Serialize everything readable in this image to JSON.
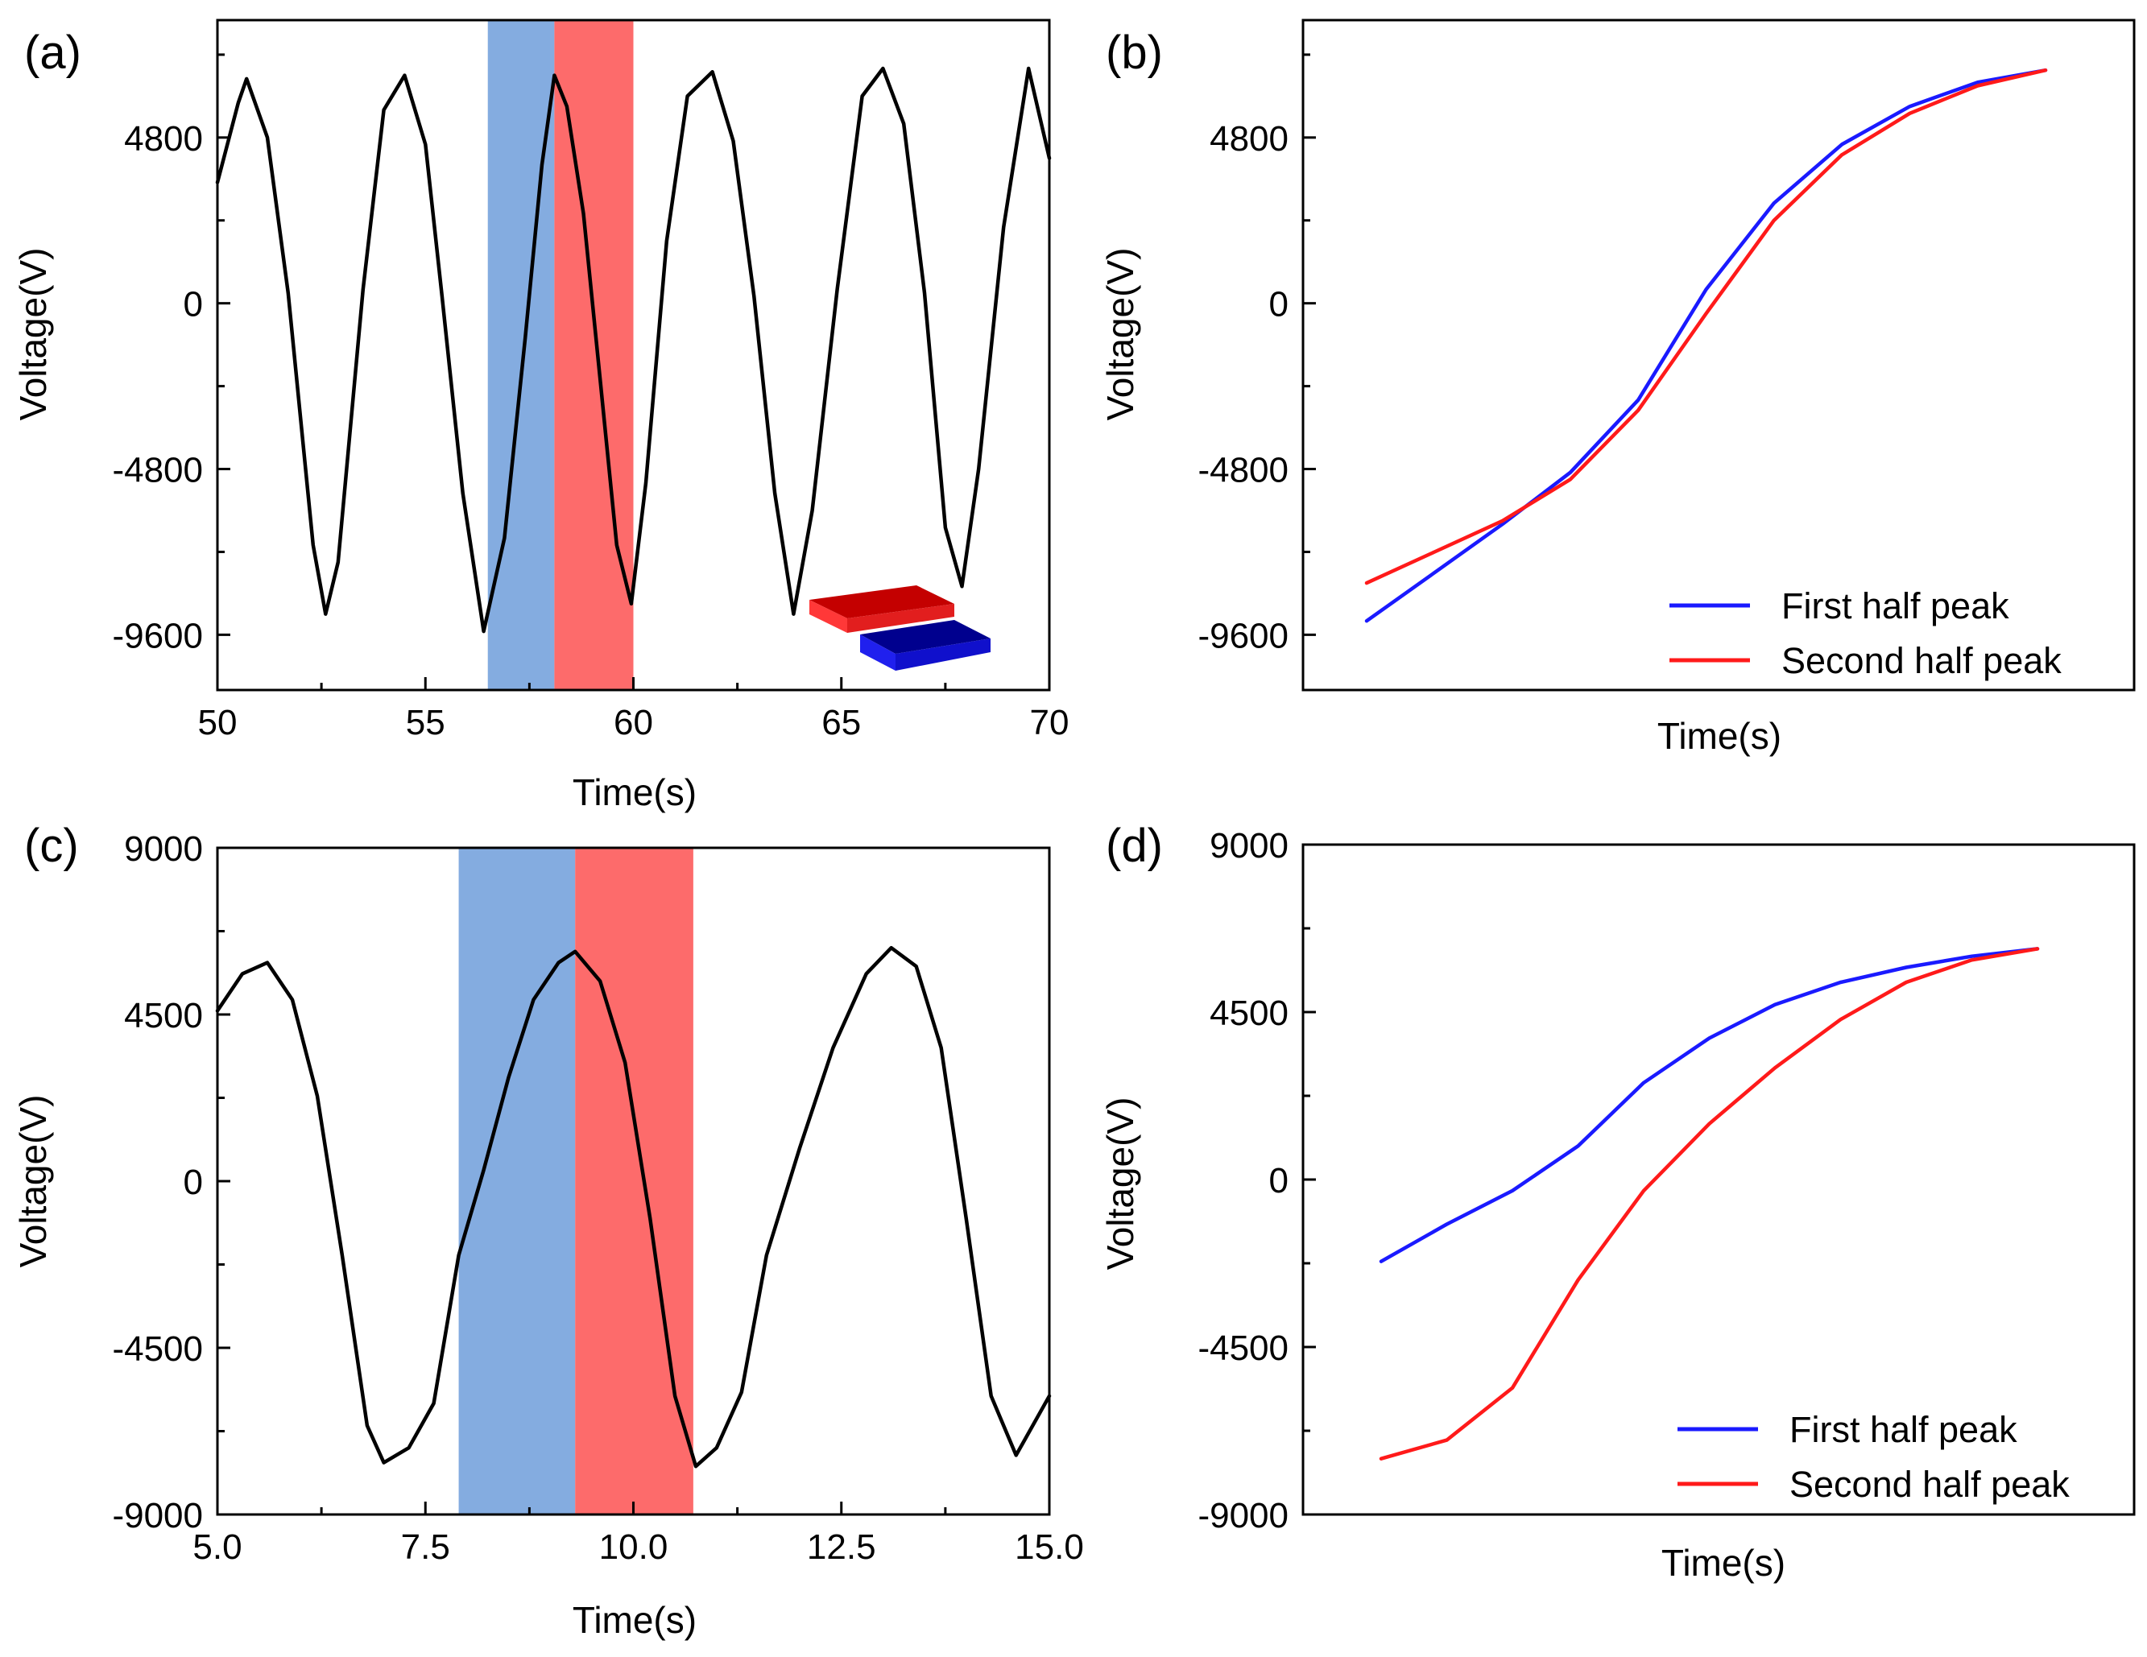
{
  "chart_data": [
    {
      "panel": "(a)",
      "type": "line",
      "xlabel": "Time(s)",
      "ylabel": "Voltage(V)",
      "xlim": [
        50,
        70
      ],
      "ylim": [
        -11200,
        8200
      ],
      "xticks": [
        "50",
        "55",
        "60",
        "65",
        "70"
      ],
      "yticks": [
        "4800",
        "0",
        "-4800",
        "-9600"
      ],
      "ytick_values": [
        4800,
        0,
        -4800,
        -9600
      ],
      "shaded_regions": [
        {
          "x0": 56.5,
          "x1": 58.1,
          "color": "#84ace0"
        },
        {
          "x0": 58.1,
          "x1": 60.0,
          "color": "#fd6b6b"
        }
      ],
      "series": [
        {
          "color": "#000000",
          "x": [
            50.0,
            50.5,
            50.7,
            51.2,
            51.7,
            52.3,
            52.6,
            52.9,
            53.5,
            54.0,
            54.5,
            55.0,
            55.4,
            55.9,
            56.4,
            56.9,
            57.4,
            57.8,
            58.1,
            58.4,
            58.8,
            59.2,
            59.6,
            59.95,
            60.3,
            60.8,
            61.3,
            61.9,
            62.4,
            62.9,
            63.4,
            63.85,
            64.3,
            64.9,
            65.5,
            66.0,
            66.5,
            67.0,
            67.5,
            67.9,
            68.3,
            68.9,
            69.5,
            70.0
          ],
          "values": [
            3500,
            5800,
            6500,
            4800,
            300,
            -7000,
            -9000,
            -7500,
            400,
            5600,
            6600,
            4600,
            200,
            -5500,
            -9500,
            -6800,
            -1000,
            4000,
            6600,
            5700,
            2600,
            -2200,
            -7000,
            -8700,
            -5200,
            1800,
            6000,
            6700,
            4700,
            200,
            -5500,
            -9000,
            -6000,
            400,
            6000,
            6800,
            5200,
            300,
            -6500,
            -8200,
            -4800,
            2200,
            6800,
            4200
          ]
        }
      ],
      "inset": "two plates (red upper, blue lower)"
    },
    {
      "panel": "(b)",
      "type": "line",
      "xlabel": "Time(s)",
      "ylabel": "Voltage(V)",
      "ylim": [
        -11200,
        8200
      ],
      "yticks": [
        "4800",
        "0",
        "-4800",
        "-9600"
      ],
      "ytick_values": [
        4800,
        0,
        -4800,
        -9600
      ],
      "x_hidden_ticks": true,
      "x": [
        0,
        0.1,
        0.2,
        0.3,
        0.4,
        0.5,
        0.6,
        0.7,
        0.8,
        0.9,
        1.0
      ],
      "series": [
        {
          "name": "First half peak",
          "color": "#1a1aff",
          "values": [
            -9200,
            -7800,
            -6400,
            -4900,
            -2800,
            400,
            2900,
            4600,
            5700,
            6400,
            6750
          ]
        },
        {
          "name": "Second half peak",
          "color": "#ff1a1a",
          "values": [
            -8100,
            -7200,
            -6300,
            -5100,
            -3100,
            -300,
            2400,
            4300,
            5500,
            6300,
            6750
          ]
        }
      ],
      "legend_position": "bottom-right"
    },
    {
      "panel": "(c)",
      "type": "line",
      "xlabel": "Time(s)",
      "ylabel": "Voltage(V)",
      "xlim": [
        5.0,
        15.0
      ],
      "ylim": [
        -9000,
        9000
      ],
      "xticks": [
        "5.0",
        "7.5",
        "10.0",
        "12.5",
        "15.0"
      ],
      "xtick_values": [
        5.0,
        7.5,
        10.0,
        12.5,
        15.0
      ],
      "yticks": [
        "9000",
        "4500",
        "0",
        "-4500",
        "-9000"
      ],
      "ytick_values": [
        9000,
        4500,
        0,
        -4500,
        -9000
      ],
      "shaded_regions": [
        {
          "x0": 7.9,
          "x1": 9.3,
          "color": "#84ace0"
        },
        {
          "x0": 9.3,
          "x1": 10.72,
          "color": "#fd6b6b"
        }
      ],
      "series": [
        {
          "color": "#000000",
          "x": [
            5.0,
            5.3,
            5.6,
            5.9,
            6.2,
            6.5,
            6.8,
            7.0,
            7.3,
            7.6,
            7.9,
            8.2,
            8.5,
            8.8,
            9.1,
            9.3,
            9.6,
            9.9,
            10.2,
            10.5,
            10.75,
            11.0,
            11.3,
            11.6,
            12.0,
            12.4,
            12.8,
            13.1,
            13.4,
            13.7,
            14.0,
            14.3,
            14.6,
            15.0
          ],
          "values": [
            4600,
            5600,
            5900,
            4900,
            2300,
            -2000,
            -6600,
            -7600,
            -7200,
            -6000,
            -2000,
            300,
            2800,
            4900,
            5900,
            6200,
            5400,
            3200,
            -1000,
            -5800,
            -7700,
            -7200,
            -5700,
            -2000,
            900,
            3600,
            5600,
            6300,
            5800,
            3600,
            -1000,
            -5800,
            -7400,
            -5800
          ]
        }
      ]
    },
    {
      "panel": "(d)",
      "type": "line",
      "xlabel": "Time(s)",
      "ylabel": "Voltage(V)",
      "ylim": [
        -9000,
        9000
      ],
      "yticks": [
        "9000",
        "4500",
        "0",
        "-4500",
        "-9000"
      ],
      "ytick_values": [
        9000,
        4500,
        0,
        -4500,
        -9000
      ],
      "x_hidden_ticks": true,
      "x": [
        0,
        0.1,
        0.2,
        0.3,
        0.4,
        0.5,
        0.6,
        0.7,
        0.8,
        0.9,
        1.0
      ],
      "series": [
        {
          "name": "First half peak",
          "color": "#1a1aff",
          "values": [
            -2200,
            -1200,
            -300,
            900,
            2600,
            3800,
            4700,
            5300,
            5700,
            6000,
            6200
          ]
        },
        {
          "name": "Second half peak",
          "color": "#ff1a1a",
          "values": [
            -7500,
            -7000,
            -5600,
            -2700,
            -300,
            1500,
            3000,
            4300,
            5300,
            5900,
            6200
          ]
        }
      ],
      "legend_position": "bottom-right"
    }
  ]
}
